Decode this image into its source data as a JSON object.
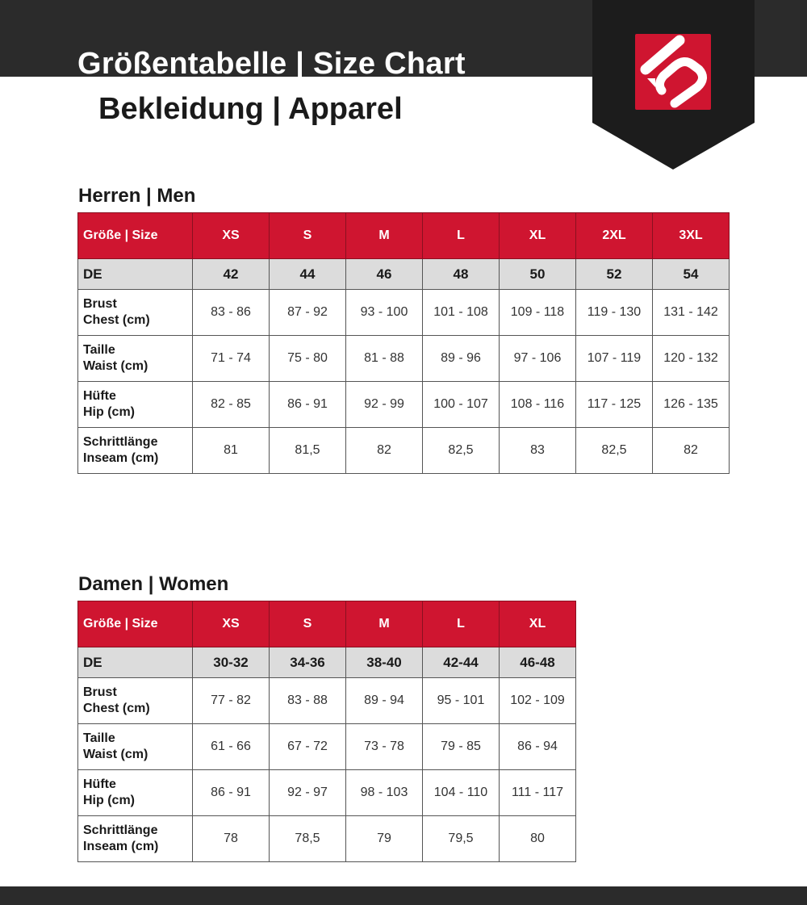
{
  "header": {
    "title": "Größentabelle | Size Chart",
    "subtitle": "Bekleidung | Apparel",
    "logo": "five-ten-logo",
    "brand_color": "#cf1530"
  },
  "men": {
    "title": "Herren | Men",
    "sizes_label": "Größe | Size",
    "sizes": [
      "XS",
      "S",
      "M",
      "L",
      "XL",
      "2XL",
      "3XL"
    ],
    "de_label": "DE",
    "de": [
      "42",
      "44",
      "46",
      "48",
      "50",
      "52",
      "54"
    ],
    "rows": [
      {
        "label1": "Brust",
        "label2": "Chest (cm)",
        "values": [
          "83 - 86",
          "87 - 92",
          "93 - 100",
          "101 - 108",
          "109 - 118",
          "119 - 130",
          "131 - 142"
        ]
      },
      {
        "label1": "Taille",
        "label2": "Waist (cm)",
        "values": [
          "71 - 74",
          "75 - 80",
          "81 - 88",
          "89 - 96",
          "97 - 106",
          "107 - 119",
          "120 - 132"
        ]
      },
      {
        "label1": "Hüfte",
        "label2": "Hip (cm)",
        "values": [
          "82 - 85",
          "86 - 91",
          "92 - 99",
          "100 - 107",
          "108 - 116",
          "117 - 125",
          "126 - 135"
        ]
      },
      {
        "label1": "Schrittlänge",
        "label2": "Inseam (cm)",
        "values": [
          "81",
          "81,5",
          "82",
          "82,5",
          "83",
          "82,5",
          "82"
        ]
      }
    ]
  },
  "women": {
    "title": "Damen | Women",
    "sizes_label": "Größe | Size",
    "sizes": [
      "XS",
      "S",
      "M",
      "L",
      "XL"
    ],
    "de_label": "DE",
    "de": [
      "30-32",
      "34-36",
      "38-40",
      "42-44",
      "46-48"
    ],
    "rows": [
      {
        "label1": "Brust",
        "label2": "Chest (cm)",
        "values": [
          "77 - 82",
          "83 - 88",
          "89 - 94",
          "95 - 101",
          "102 - 109"
        ]
      },
      {
        "label1": "Taille",
        "label2": "Waist (cm)",
        "values": [
          "61 - 66",
          "67 - 72",
          "73 - 78",
          "79 - 85",
          "86 - 94"
        ]
      },
      {
        "label1": "Hüfte",
        "label2": "Hip (cm)",
        "values": [
          "86 - 91",
          "92 - 97",
          "98 - 103",
          "104 - 110",
          "111 - 117"
        ]
      },
      {
        "label1": "Schrittlänge",
        "label2": "Inseam (cm)",
        "values": [
          "78",
          "78,5",
          "79",
          "79,5",
          "80"
        ]
      }
    ]
  }
}
